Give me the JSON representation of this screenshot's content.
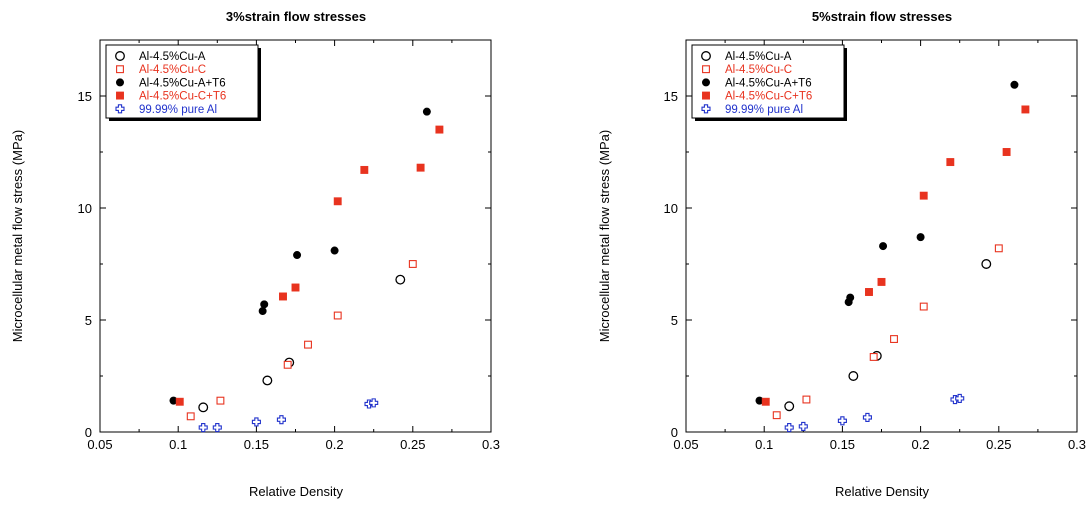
{
  "chart_data": [
    {
      "type": "scatter",
      "title": "3%strain flow stresses",
      "xlabel": "Relative Density",
      "ylabel": "Microcellular metal flow stress (MPa)",
      "xlim": [
        0.05,
        0.3
      ],
      "ylim": [
        0,
        17.5
      ],
      "xticks": [
        "0.05",
        "0.1",
        "0.15",
        "0.2",
        "0.25",
        "0.3"
      ],
      "yticks": [
        "0",
        "5",
        "10",
        "15"
      ],
      "grid": false,
      "legend_position": "top-left",
      "series": [
        {
          "name": "Al-4.5%Cu-A",
          "color": "#000000",
          "marker": "open-circle",
          "x": [
            0.116,
            0.157,
            0.171,
            0.242
          ],
          "y": [
            1.1,
            2.3,
            3.1,
            6.8
          ]
        },
        {
          "name": "Al-4.5%Cu-C",
          "color": "#e8331f",
          "marker": "open-square",
          "x": [
            0.108,
            0.127,
            0.17,
            0.183,
            0.202,
            0.25
          ],
          "y": [
            0.7,
            1.4,
            3.0,
            3.9,
            5.2,
            7.5
          ]
        },
        {
          "name": "Al-4.5%Cu-A+T6",
          "color": "#000000",
          "marker": "filled-circle",
          "x": [
            0.097,
            0.154,
            0.155,
            0.176,
            0.2,
            0.259
          ],
          "y": [
            1.4,
            5.4,
            5.7,
            7.9,
            8.1,
            14.3
          ]
        },
        {
          "name": "Al-4.5%Cu-C+T6",
          "color": "#e8331f",
          "marker": "filled-square",
          "x": [
            0.101,
            0.167,
            0.175,
            0.202,
            0.219,
            0.255,
            0.267
          ],
          "y": [
            1.35,
            6.05,
            6.45,
            10.3,
            11.7,
            11.8,
            13.5
          ]
        },
        {
          "name": "99.99% pure Al",
          "color": "#2233cc",
          "marker": "cross",
          "x": [
            0.116,
            0.125,
            0.15,
            0.166,
            0.222,
            0.225
          ],
          "y": [
            0.2,
            0.2,
            0.45,
            0.55,
            1.25,
            1.3
          ]
        }
      ]
    },
    {
      "type": "scatter",
      "title": "5%strain flow stresses",
      "xlabel": "Relative Density",
      "ylabel": "Microcellular metal flow stress (MPa)",
      "xlim": [
        0.05,
        0.3
      ],
      "ylim": [
        0,
        17.5
      ],
      "xticks": [
        "0.05",
        "0.1",
        "0.15",
        "0.2",
        "0.25",
        "0.3"
      ],
      "yticks": [
        "0",
        "5",
        "10",
        "15"
      ],
      "grid": false,
      "legend_position": "top-left",
      "series": [
        {
          "name": "Al-4.5%Cu-A",
          "color": "#000000",
          "marker": "open-circle",
          "x": [
            0.116,
            0.157,
            0.172,
            0.242
          ],
          "y": [
            1.15,
            2.5,
            3.4,
            7.5
          ]
        },
        {
          "name": "Al-4.5%Cu-C",
          "color": "#e8331f",
          "marker": "open-square",
          "x": [
            0.108,
            0.127,
            0.17,
            0.183,
            0.202,
            0.25
          ],
          "y": [
            0.75,
            1.45,
            3.35,
            4.15,
            5.6,
            8.2
          ]
        },
        {
          "name": "Al-4.5%Cu-A+T6",
          "color": "#000000",
          "marker": "filled-circle",
          "x": [
            0.097,
            0.154,
            0.155,
            0.176,
            0.2,
            0.26
          ],
          "y": [
            1.4,
            5.8,
            6.0,
            8.3,
            8.7,
            15.5
          ]
        },
        {
          "name": "Al-4.5%Cu-C+T6",
          "color": "#e8331f",
          "marker": "filled-square",
          "x": [
            0.101,
            0.167,
            0.175,
            0.202,
            0.219,
            0.255,
            0.267
          ],
          "y": [
            1.35,
            6.25,
            6.7,
            10.55,
            12.05,
            12.5,
            14.4
          ]
        },
        {
          "name": "99.99% pure Al",
          "color": "#2233cc",
          "marker": "cross",
          "x": [
            0.116,
            0.125,
            0.15,
            0.166,
            0.222,
            0.225
          ],
          "y": [
            0.2,
            0.25,
            0.5,
            0.65,
            1.45,
            1.5
          ]
        }
      ]
    }
  ]
}
